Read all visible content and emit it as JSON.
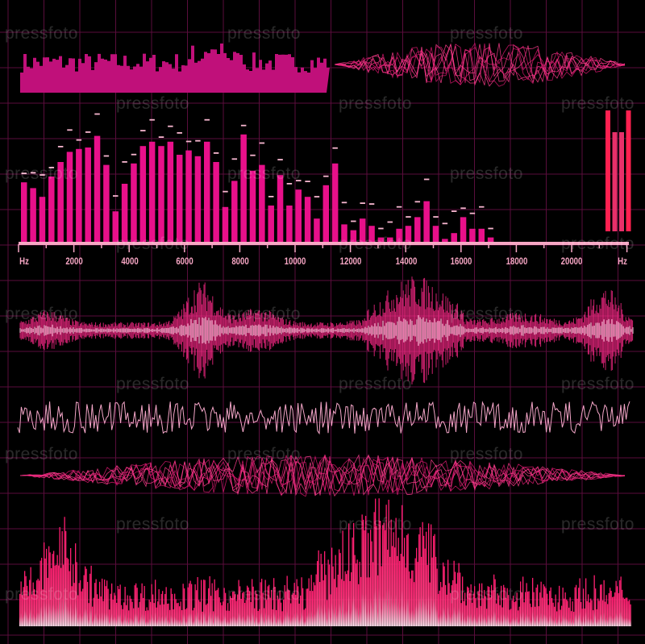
{
  "watermark": "pressfoto",
  "colors": {
    "background": "#000000",
    "grid": "#5a0d3c",
    "bar": "#e8108a",
    "peak": "#f7b6cf",
    "axis": "#f7a6c4",
    "wave": "#ff2a8a",
    "wave_light": "#ffd0e4"
  },
  "spectrum": {
    "unit_left": "Hz",
    "unit_right": "Hz",
    "tick_labels": [
      "2000",
      "4000",
      "6000",
      "8000",
      "10000",
      "12000",
      "14000",
      "16000",
      "18000",
      "20000"
    ],
    "levels_percent": [
      41,
      37,
      31,
      45,
      55,
      62,
      64,
      65,
      73,
      53,
      21,
      40,
      54,
      66,
      69,
      66,
      69,
      60,
      63,
      59,
      69,
      55,
      24,
      42,
      74,
      49,
      53,
      25,
      46,
      25,
      36,
      31,
      16,
      39,
      54,
      12,
      8,
      16,
      11,
      3,
      3,
      9,
      11,
      17,
      28,
      11,
      2,
      6,
      17,
      9,
      9,
      3
    ],
    "vu_levels_percent": [
      100,
      82,
      82,
      100
    ]
  }
}
